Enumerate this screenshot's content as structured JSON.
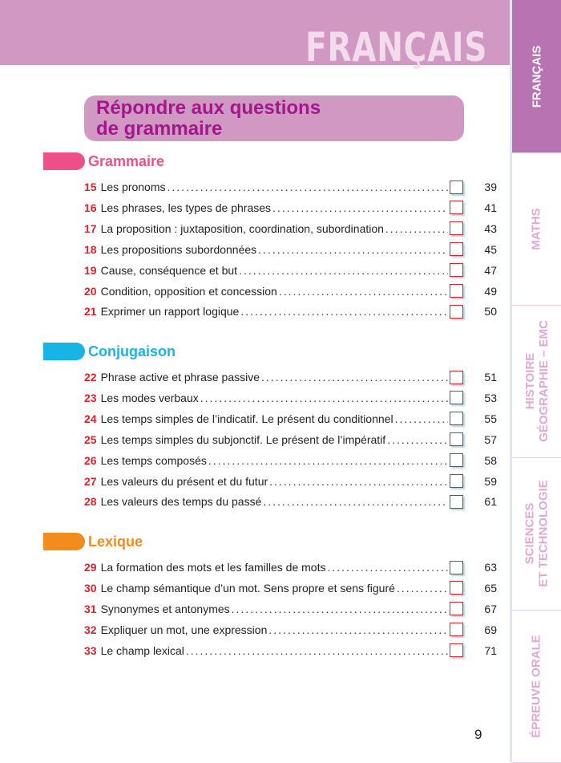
{
  "header": {
    "subject": "FRANÇAIS"
  },
  "tabs": [
    {
      "label": "FRANÇAIS",
      "active": true
    },
    {
      "label": "MATHS"
    },
    {
      "label": "HISTOIRE\nGÉOGRAPHIE – EMC"
    },
    {
      "label": "SCIENCES\nET TECHNOLOGIE"
    },
    {
      "label": "ÉPREUVE ORALE"
    }
  ],
  "chapter": {
    "title": "Répondre aux questions\nde grammaire"
  },
  "colors": {
    "grammaire": "#ee4f86",
    "conjugaison": "#18b4e6",
    "lexique": "#f28c1c",
    "number": "#e4202a",
    "banner": "#d298c4",
    "chapter_text": "#a3178c"
  },
  "sections": [
    {
      "title": "Grammaire",
      "items": [
        {
          "num": "15",
          "label": "Les pronoms",
          "page": "39"
        },
        {
          "num": "16",
          "label": "Les phrases, les types de phrases",
          "page": "41"
        },
        {
          "num": "17",
          "label": "La proposition : juxtaposition, coordination, subordination",
          "page": "43"
        },
        {
          "num": "18",
          "label": "Les propositions subordonnées",
          "page": "45"
        },
        {
          "num": "19",
          "label": "Cause, conséquence et but",
          "page": "47"
        },
        {
          "num": "20",
          "label": "Condition, opposition et concession",
          "page": "49"
        },
        {
          "num": "21",
          "label": "Exprimer un rapport logique",
          "page": "50"
        }
      ]
    },
    {
      "title": "Conjugaison",
      "items": [
        {
          "num": "22",
          "label": "Phrase active et phrase passive",
          "page": "51"
        },
        {
          "num": "23",
          "label": "Les modes verbaux",
          "page": "53"
        },
        {
          "num": "24",
          "label": "Les temps simples de l’indicatif. Le présent du conditionnel",
          "page": "55"
        },
        {
          "num": "25",
          "label": "Les temps simples du subjonctif. Le présent de l’impératif",
          "page": "57"
        },
        {
          "num": "26",
          "label": "Les temps composés",
          "page": "58"
        },
        {
          "num": "27",
          "label": "Les valeurs du présent et du futur",
          "page": "59"
        },
        {
          "num": "28",
          "label": "Les valeurs des temps du passé",
          "page": "61"
        }
      ]
    },
    {
      "title": "Lexique",
      "items": [
        {
          "num": "29",
          "label": "La formation des mots et les familles de mots",
          "page": "63"
        },
        {
          "num": "30",
          "label": "Le champ sémantique d’un mot. Sens propre et sens figuré",
          "page": "65"
        },
        {
          "num": "31",
          "label": "Synonymes et antonymes",
          "page": "67"
        },
        {
          "num": "32",
          "label": "Expliquer un mot, une expression",
          "page": "69"
        },
        {
          "num": "33",
          "label": "Le champ lexical",
          "page": "71"
        }
      ]
    }
  ],
  "footer": {
    "page_number": "9"
  }
}
